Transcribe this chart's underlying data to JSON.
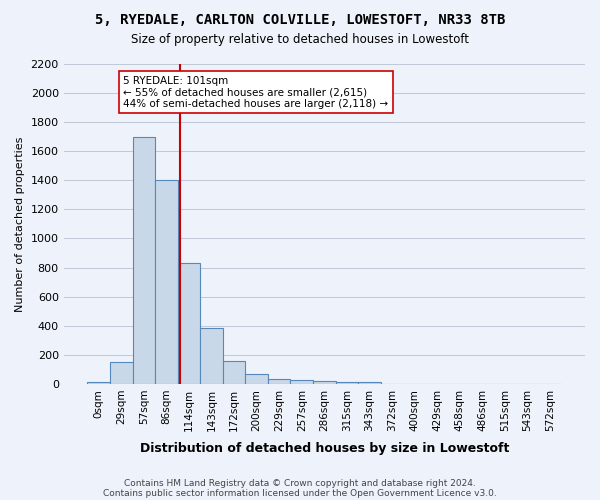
{
  "title": "5, RYEDALE, CARLTON COLVILLE, LOWESTOFT, NR33 8TB",
  "subtitle": "Size of property relative to detached houses in Lowestoft",
  "xlabel": "Distribution of detached houses by size in Lowestoft",
  "ylabel": "Number of detached properties",
  "footer_line1": "Contains HM Land Registry data © Crown copyright and database right 2024.",
  "footer_line2": "Contains public sector information licensed under the Open Government Licence v3.0.",
  "bar_labels": [
    "0sqm",
    "29sqm",
    "57sqm",
    "86sqm",
    "114sqm",
    "143sqm",
    "172sqm",
    "200sqm",
    "229sqm",
    "257sqm",
    "286sqm",
    "315sqm",
    "343sqm",
    "372sqm",
    "400sqm",
    "429sqm",
    "458sqm",
    "486sqm",
    "515sqm",
    "543sqm",
    "572sqm"
  ],
  "bar_values": [
    15,
    150,
    1700,
    1400,
    830,
    385,
    160,
    65,
    35,
    25,
    20,
    10,
    10,
    0,
    0,
    0,
    0,
    0,
    0,
    0,
    0
  ],
  "bar_color": "#c8d8e8",
  "bar_edge_color": "#5588bb",
  "ylim": [
    0,
    2200
  ],
  "yticks": [
    0,
    200,
    400,
    600,
    800,
    1000,
    1200,
    1400,
    1600,
    1800,
    2000,
    2200
  ],
  "vline_x": 3.62,
  "vline_color": "#cc0000",
  "annotation_line1": "5 RYEDALE: 101sqm",
  "annotation_line2": "← 55% of detached houses are smaller (2,615)",
  "annotation_line3": "44% of semi-detached houses are larger (2,118) →",
  "annotation_box_color": "#ffffff",
  "annotation_box_edge": "#cc0000",
  "background_color": "#eef2fa"
}
